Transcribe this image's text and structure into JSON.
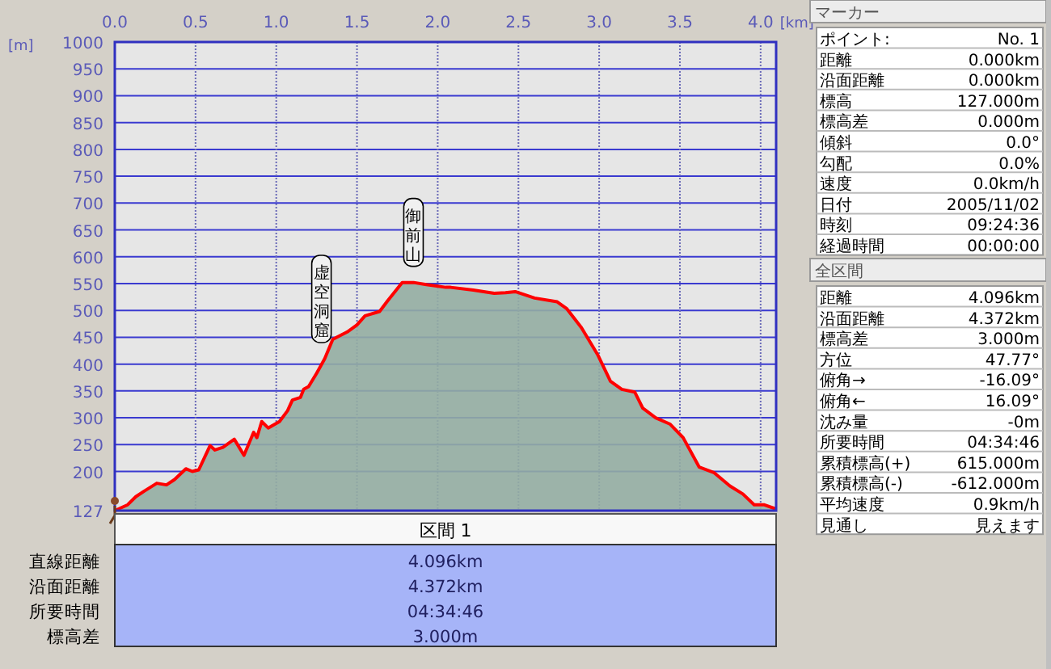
{
  "chart_data": [
    {
      "type": "area",
      "xlabel": "[km]",
      "ylabel": "[m]",
      "xlim": [
        0,
        4.096
      ],
      "ylim": [
        127,
        1000
      ],
      "xticks": [
        {
          "value": 0,
          "label": "0.0"
        },
        {
          "value": 0.5,
          "label": "0.5"
        },
        {
          "value": 1,
          "label": "1.0"
        },
        {
          "value": 1.5,
          "label": "1.5"
        },
        {
          "value": 2,
          "label": "2.0"
        },
        {
          "value": 2.5,
          "label": "2.5"
        },
        {
          "value": 3,
          "label": "3.0"
        },
        {
          "value": 3.5,
          "label": "3.5"
        },
        {
          "value": 4,
          "label": "4.0"
        }
      ],
      "yticks": [
        127,
        200,
        250,
        300,
        350,
        400,
        450,
        500,
        550,
        600,
        650,
        700,
        750,
        800,
        850,
        900,
        950,
        1000
      ],
      "grid": true,
      "x": [
        0,
        0.08,
        0.13,
        0.18,
        0.26,
        0.32,
        0.37,
        0.44,
        0.48,
        0.52,
        0.59,
        0.62,
        0.67,
        0.74,
        0.8,
        0.86,
        0.88,
        0.91,
        0.95,
        1.02,
        1.07,
        1.1,
        1.15,
        1.17,
        1.2,
        1.25,
        1.3,
        1.35,
        1.44,
        1.5,
        1.55,
        1.64,
        1.69,
        1.78,
        1.85,
        1.93,
        2.05,
        2.08,
        2.22,
        2.35,
        2.42,
        2.48,
        2.6,
        2.74,
        2.8,
        2.89,
        2.99,
        3.07,
        3.14,
        3.22,
        3.27,
        3.35,
        3.44,
        3.52,
        3.62,
        3.71,
        3.81,
        3.89,
        3.96,
        4.02,
        4.096
      ],
      "series": [
        {
          "color": "#ff0000",
          "values": [
            127,
            138,
            153,
            163,
            178,
            175,
            185,
            205,
            200,
            203,
            248,
            240,
            245,
            260,
            230,
            273,
            263,
            293,
            281,
            293,
            313,
            333,
            338,
            353,
            358,
            383,
            410,
            446,
            460,
            473,
            490,
            498,
            518,
            552,
            552,
            548,
            543,
            543,
            538,
            532,
            533,
            535,
            523,
            516,
            503,
            468,
            418,
            368,
            353,
            348,
            318,
            300,
            288,
            263,
            208,
            198,
            173,
            158,
            138,
            138,
            130
          ]
        }
      ],
      "annotations": [
        {
          "text": "虚空洞窟",
          "x": 1.28,
          "y": 410
        },
        {
          "text": "御前山",
          "x": 1.85,
          "y": 552
        }
      ]
    },
    {
      "type": "other",
      "title": "マーカー",
      "annotations": [
        "ポイント:",
        "No. 1",
        "距離",
        "0.000km",
        "沿面距離",
        "0.000km",
        "標高",
        "127.000m",
        "標高差",
        "0.000m",
        "傾斜",
        "0.0°",
        "勾配",
        "0.0%",
        "速度",
        "0.0km/h",
        "日付",
        "2005/11/02",
        "時刻",
        "09:24:36",
        "経過時間",
        "00:00:00"
      ]
    },
    {
      "type": "other",
      "title": "全区間",
      "annotations": [
        "距離",
        "4.096km",
        "沿面距離",
        "4.372km",
        "標高差",
        "3.000m",
        "方位",
        "47.77°",
        "俯角→",
        "-16.09°",
        "俯角←",
        "16.09°",
        "沈み量",
        "-0m",
        "所要時間",
        "04:34:46",
        "累積標高(+)",
        "615.000m",
        "累積標高(-)",
        "-612.000m",
        "平均速度",
        "0.9km/h",
        "見通し",
        "見えます"
      ]
    },
    {
      "type": "other",
      "title": "区間 1",
      "annotations": [
        "直線距離",
        "4.096km",
        "沿面距離",
        "4.372km",
        "所要時間",
        "04:34:46",
        "標高差",
        "3.000m"
      ]
    }
  ]
}
